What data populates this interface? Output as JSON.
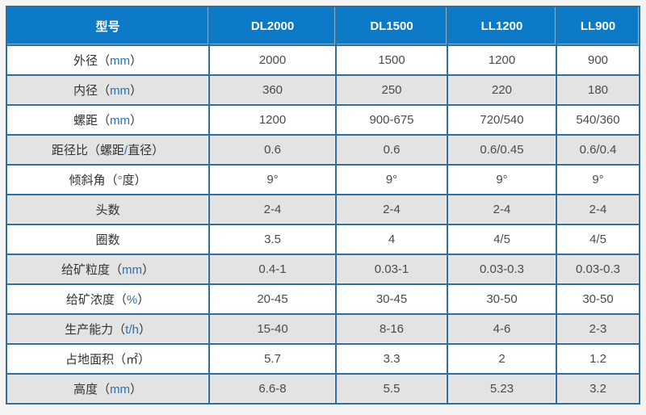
{
  "chart_data": {
    "type": "table",
    "title": "",
    "columns": [
      "型号",
      "DL2000",
      "DL1500",
      "LL1200",
      "LL900"
    ],
    "rows": [
      [
        "外径（mm）",
        "2000",
        "1500",
        "1200",
        "900"
      ],
      [
        "内径（mm）",
        "360",
        "250",
        "220",
        "180"
      ],
      [
        "螺距（mm）",
        "1200",
        "900-675",
        "720/540",
        "540/360"
      ],
      [
        "距径比（螺距/直径）",
        "0.6",
        "0.6",
        "0.6/0.45",
        "0.6/0.4"
      ],
      [
        "倾斜角（°度）",
        "9°",
        "9°",
        "9°",
        "9°"
      ],
      [
        "头数",
        "2-4",
        "2-4",
        "2-4",
        "2-4"
      ],
      [
        "圈数",
        "3.5",
        "4",
        "4/5",
        "4/5"
      ],
      [
        "给矿粒度（mm）",
        "0.4-1",
        "0.03-1",
        "0.03-0.3",
        "0.03-0.3"
      ],
      [
        "给矿浓度（%）",
        "20-45",
        "30-45",
        "30-50",
        "30-50"
      ],
      [
        "生产能力（t/h）",
        "15-40",
        "8-16",
        "4-6",
        "2-3"
      ],
      [
        "占地面积（㎡）",
        "5.7",
        "3.3",
        "2",
        "1.2"
      ],
      [
        "高度（mm）",
        "6.6-8",
        "5.5",
        "5.23",
        "3.2"
      ]
    ],
    "layout": {
      "header_row": true,
      "striped": "white-gray alternating",
      "grid": true
    }
  },
  "table": {
    "labels": [
      {
        "pre": "外径（",
        "ascii": "mm",
        "post": "）"
      },
      {
        "pre": "内径（",
        "ascii": "mm",
        "post": "）"
      },
      {
        "pre": "螺距（",
        "ascii": "mm",
        "post": "）"
      },
      {
        "pre": "距径比（螺距",
        "ascii": "/",
        "post": "直径）"
      },
      {
        "pre": "倾斜角（",
        "ascii": "°",
        "post": "度）"
      },
      {
        "pre": "头数",
        "ascii": "",
        "post": ""
      },
      {
        "pre": "圈数",
        "ascii": "",
        "post": ""
      },
      {
        "pre": "给矿粒度（",
        "ascii": "mm",
        "post": "）"
      },
      {
        "pre": "给矿浓度（",
        "ascii": "%",
        "post": "）"
      },
      {
        "pre": "生产能力（",
        "ascii": "t/h",
        "post": "）"
      },
      {
        "pre": "占地面积（㎡）",
        "ascii": "",
        "post": ""
      },
      {
        "pre": "高度（",
        "ascii": "mm",
        "post": "）"
      }
    ]
  },
  "colors": {
    "header_bg": "#0c7ac6",
    "header_text": "#ffffff",
    "border": "#2f6e9d",
    "stripe": "#e3e3e3",
    "row_bg": "#ffffff",
    "page_bg": "#f4f4f4",
    "label_text": "#333333",
    "value_text": "#4a4a4f",
    "ascii_accent": "#2e6fae"
  }
}
